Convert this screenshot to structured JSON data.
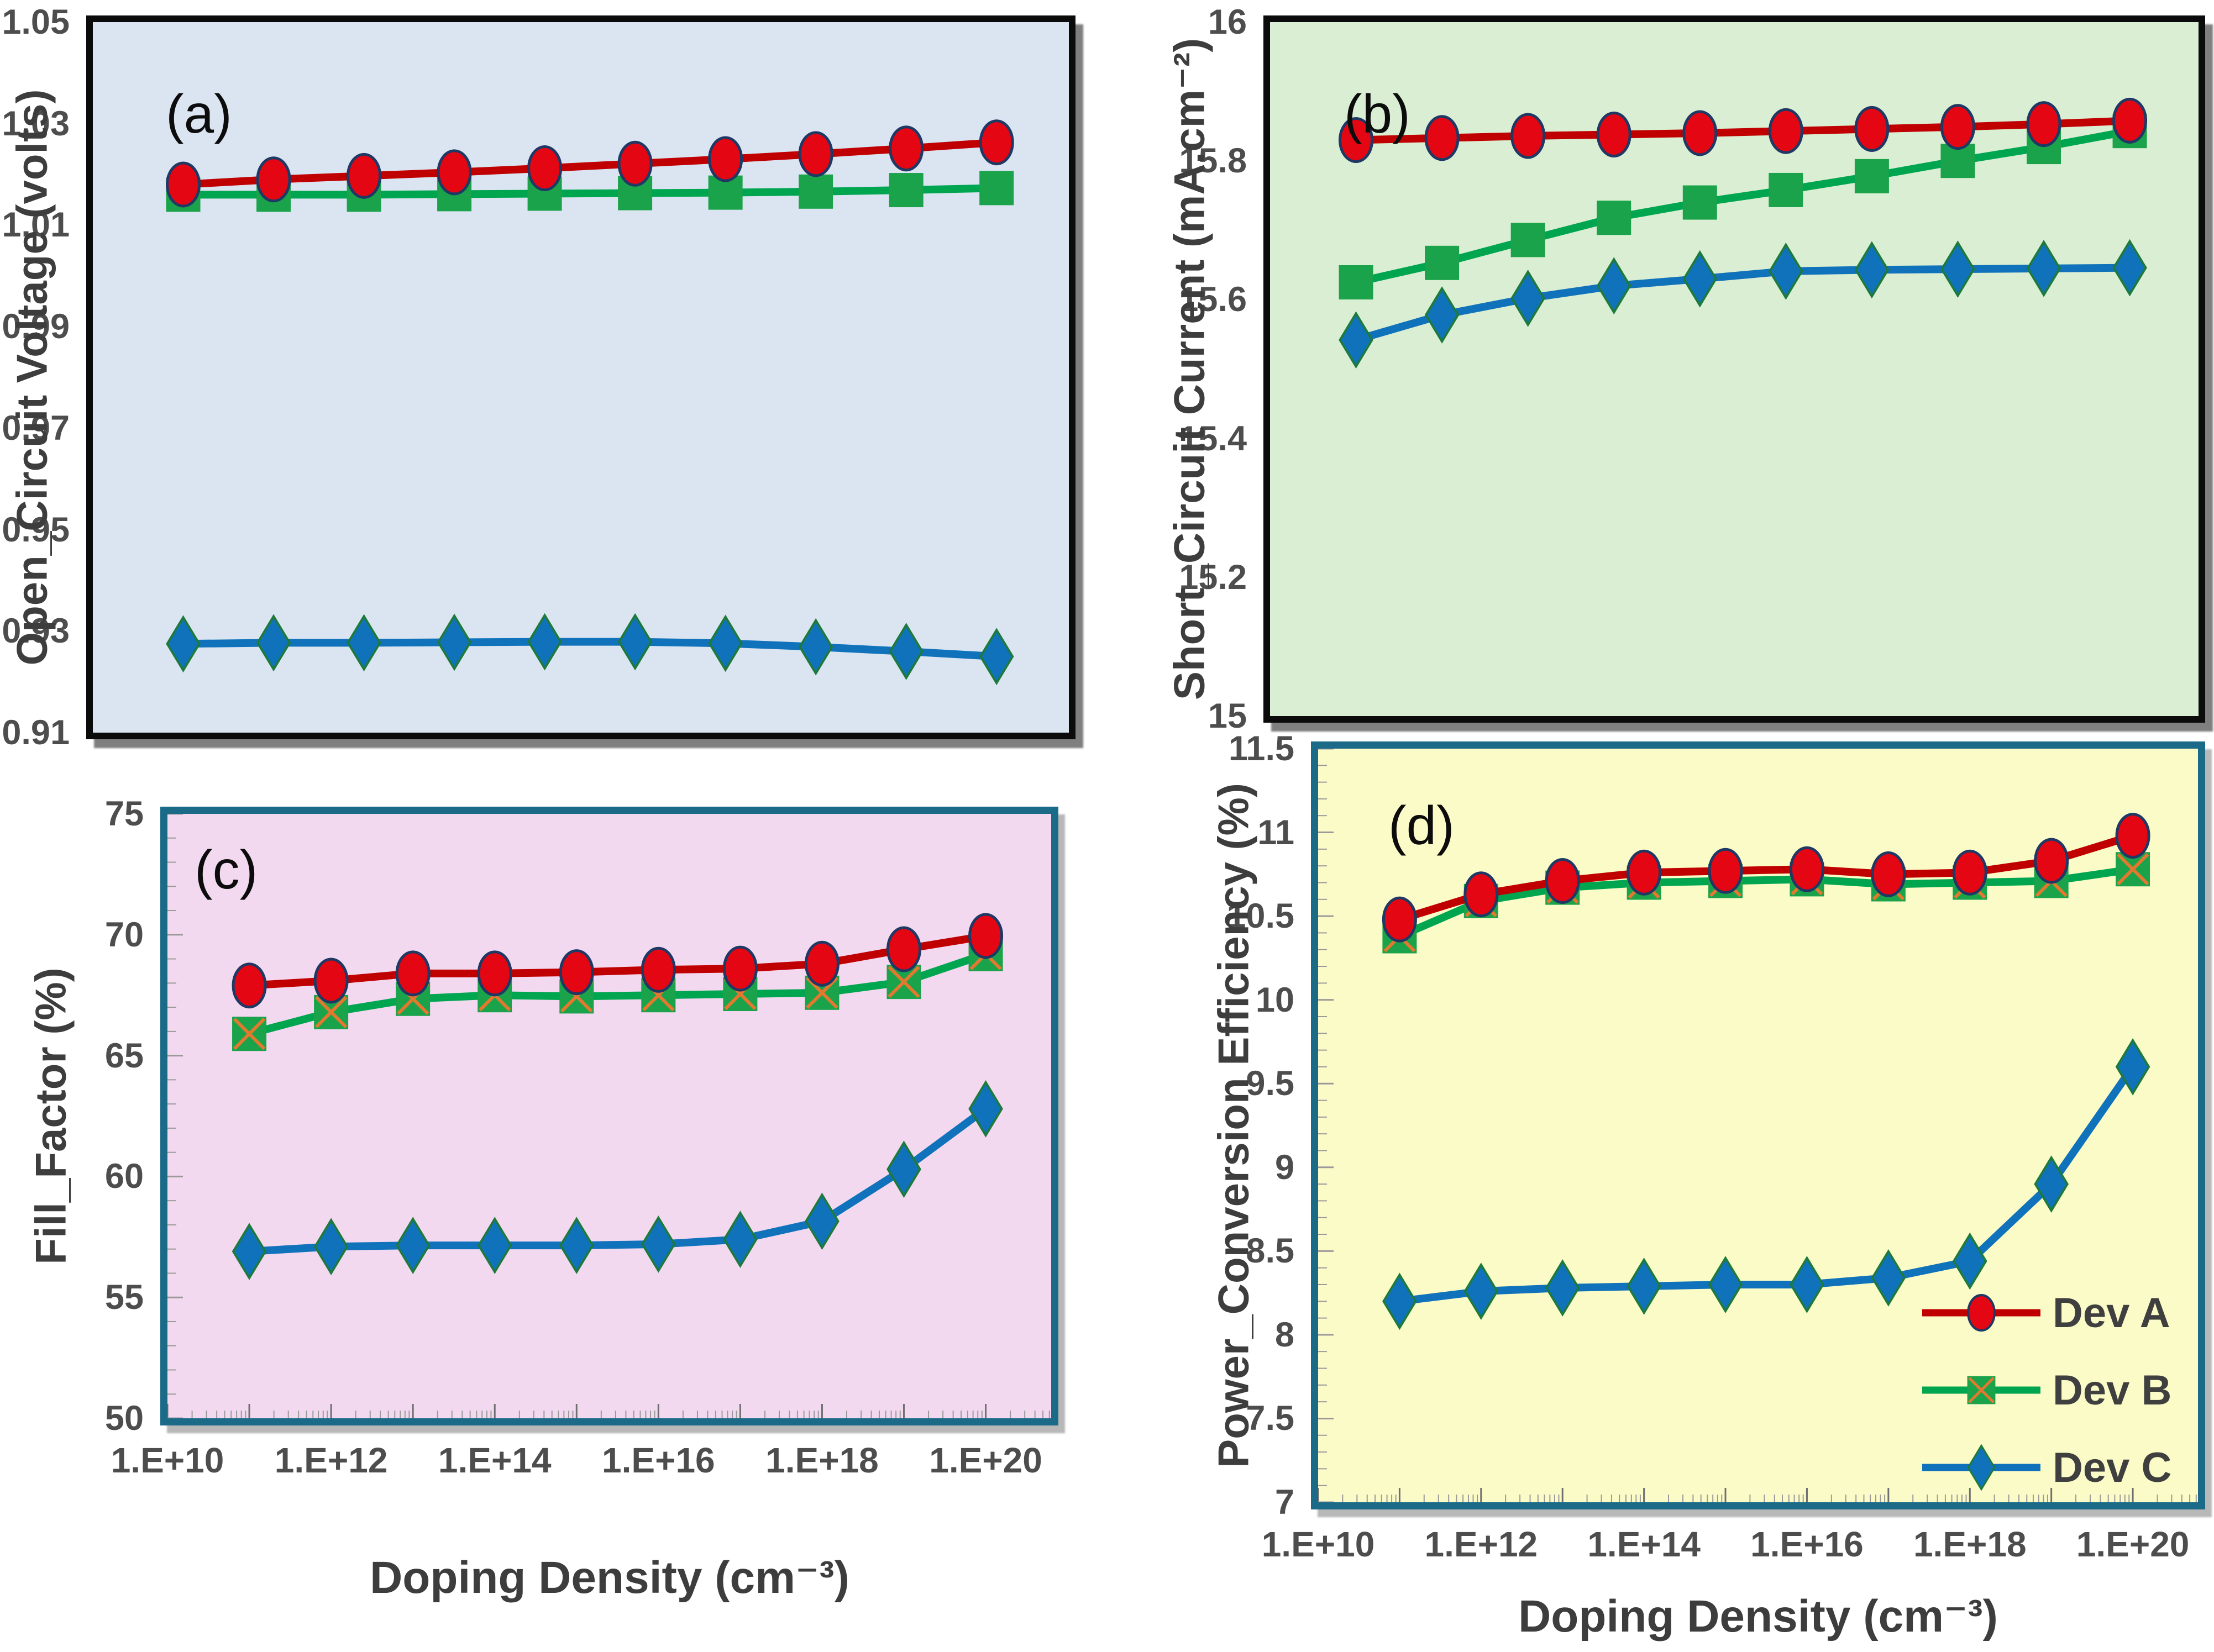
{
  "figure": {
    "background": "#ffffff",
    "x_axis": {
      "label": "Doping Density (cm⁻³)",
      "scale": "log",
      "tick_labels": [
        "1.E+10",
        "1.E+12",
        "1.E+14",
        "1.E+16",
        "1.E+18",
        "1.E+20"
      ],
      "tick_log10": [
        10,
        12,
        14,
        16,
        18,
        20
      ],
      "domain_log10": [
        10,
        20.8
      ]
    },
    "legend": {
      "position": "inside-panel-d-bottom-right",
      "items": [
        {
          "label": "Dev A",
          "color": "#c00000",
          "marker": "circle"
        },
        {
          "label": "Dev B",
          "color": "#00a550",
          "marker": "square-x"
        },
        {
          "label": "Dev C",
          "color": "#1072ba",
          "marker": "diamond"
        }
      ]
    },
    "colors": {
      "dev_a_line": "#c00000",
      "dev_a_fill": "#e40613",
      "dev_a_stroke": "#1f3864",
      "dev_b_line": "#00a550",
      "dev_b_fill": "#1aa34a",
      "dev_b_x": "#e2792f",
      "dev_c_line": "#1072ba",
      "dev_c_fill": "#1072ba",
      "dev_c_stroke": "#1e7a3c",
      "tick_text": "#4d4d4d",
      "axis_title_text": "#3d3d3d",
      "panel_ab_border": "#0b0b0b",
      "panel_cd_border": "#1b6a88",
      "minor_tick": "#9a9a9a"
    }
  },
  "chart_data": [
    {
      "type": "line",
      "panel_label": "(a)",
      "ylabel": "Open_Circuit Voltage (volts)",
      "ylim": [
        0.91,
        1.05
      ],
      "ytick_labels": [
        "1.05",
        "1.03",
        "1.01",
        "0.99",
        "0.97",
        "0.95",
        "0.93",
        "0.91"
      ],
      "ytick_values": [
        1.05,
        1.03,
        1.01,
        0.99,
        0.97,
        0.95,
        0.93,
        0.91
      ],
      "background": "#dbe5f1",
      "x_log10": [
        11,
        12,
        13,
        14,
        15,
        16,
        17,
        18,
        19,
        20
      ],
      "series": [
        {
          "name": "Dev A",
          "marker": "circle",
          "values": [
            1.018,
            1.019,
            1.0197,
            1.0204,
            1.0212,
            1.0221,
            1.023,
            1.024,
            1.0251,
            1.0263
          ]
        },
        {
          "name": "Dev B",
          "marker": "square",
          "values": [
            1.016,
            1.016,
            1.016,
            1.0161,
            1.0162,
            1.0163,
            1.0164,
            1.0166,
            1.0169,
            1.0173
          ]
        },
        {
          "name": "Dev C",
          "marker": "diamond",
          "values": [
            0.9275,
            0.9277,
            0.9277,
            0.9278,
            0.9279,
            0.9279,
            0.9276,
            0.9269,
            0.926,
            0.925
          ]
        }
      ]
    },
    {
      "type": "line",
      "panel_label": "(b)",
      "ylabel": "Short_Circuit Current (mA.cm⁻²)",
      "ylim": [
        15,
        16
      ],
      "ytick_labels": [
        "16",
        "15.8",
        "15.6",
        "15.4",
        "15.2",
        "15"
      ],
      "ytick_values": [
        16,
        15.8,
        15.6,
        15.4,
        15.2,
        15
      ],
      "background": "#d9eed2",
      "x_log10": [
        11,
        12,
        13,
        14,
        15,
        16,
        17,
        18,
        19,
        20
      ],
      "series": [
        {
          "name": "Dev A",
          "marker": "circle",
          "values": [
            15.83,
            15.833,
            15.836,
            15.838,
            15.84,
            15.843,
            15.846,
            15.849,
            15.853,
            15.858
          ]
        },
        {
          "name": "Dev B",
          "marker": "square",
          "values": [
            15.625,
            15.653,
            15.686,
            15.718,
            15.74,
            15.758,
            15.778,
            15.8,
            15.82,
            15.843
          ]
        },
        {
          "name": "Dev C",
          "marker": "diamond",
          "values": [
            15.542,
            15.578,
            15.602,
            15.62,
            15.63,
            15.641,
            15.643,
            15.644,
            15.645,
            15.646
          ]
        }
      ]
    },
    {
      "type": "line",
      "panel_label": "(c)",
      "ylabel": "Fill_Factor (%)",
      "ylim": [
        50,
        75
      ],
      "ytick_labels": [
        "75",
        "70",
        "65",
        "60",
        "55",
        "50"
      ],
      "ytick_values": [
        75,
        70,
        65,
        60,
        55,
        50
      ],
      "background": "#f3d9f0",
      "x_log10": [
        11,
        12,
        13,
        14,
        15,
        16,
        17,
        18,
        19,
        20
      ],
      "series": [
        {
          "name": "Dev A",
          "marker": "circle",
          "values": [
            67.9,
            68.1,
            68.4,
            68.4,
            68.45,
            68.55,
            68.6,
            68.8,
            69.4,
            69.95
          ]
        },
        {
          "name": "Dev B",
          "marker": "square-x",
          "values": [
            65.9,
            66.8,
            67.35,
            67.5,
            67.45,
            67.5,
            67.55,
            67.6,
            68.05,
            69.2
          ]
        },
        {
          "name": "Dev C",
          "marker": "diamond",
          "values": [
            56.9,
            57.1,
            57.15,
            57.15,
            57.15,
            57.2,
            57.4,
            58.15,
            60.3,
            62.8
          ]
        }
      ]
    },
    {
      "type": "line",
      "panel_label": "(d)",
      "ylabel": "Power_Conversion Efficiency (%)",
      "ylim": [
        7,
        11.5
      ],
      "ytick_labels": [
        "11.5",
        "11",
        "10.5",
        "10",
        "9.5",
        "9",
        "8.5",
        "8",
        "7.5",
        "7"
      ],
      "ytick_values": [
        11.5,
        11,
        10.5,
        10,
        9.5,
        9,
        8.5,
        8,
        7.5,
        7
      ],
      "background": "#fbfbc8",
      "x_log10": [
        11,
        12,
        13,
        14,
        15,
        16,
        17,
        18,
        19,
        20
      ],
      "series": [
        {
          "name": "Dev A",
          "marker": "circle",
          "values": [
            10.48,
            10.63,
            10.71,
            10.76,
            10.77,
            10.78,
            10.75,
            10.76,
            10.83,
            10.98
          ]
        },
        {
          "name": "Dev B",
          "marker": "square-x",
          "values": [
            10.38,
            10.59,
            10.67,
            10.7,
            10.71,
            10.72,
            10.69,
            10.7,
            10.71,
            10.78
          ]
        },
        {
          "name": "Dev C",
          "marker": "diamond",
          "values": [
            8.2,
            8.26,
            8.28,
            8.29,
            8.3,
            8.3,
            8.34,
            8.44,
            8.9,
            9.6
          ]
        }
      ]
    }
  ]
}
